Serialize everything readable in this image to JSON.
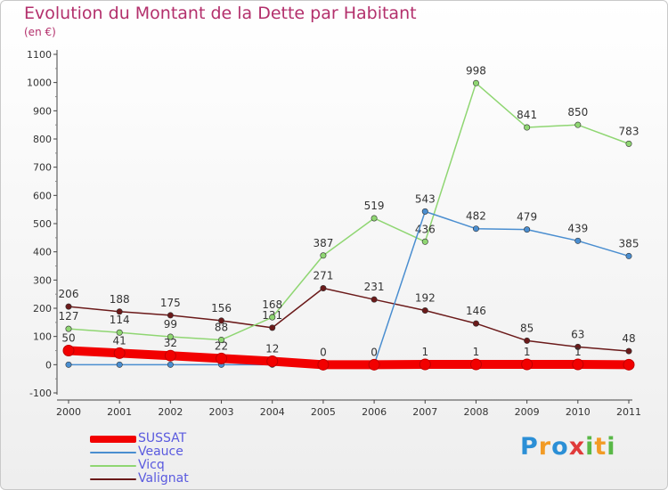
{
  "title": "Evolution du Montant de la Dette par Habitant",
  "subtitle": "(en €)",
  "logo": {
    "text": "Proxiti",
    "colors": [
      "#2b8fd6",
      "#f29b25",
      "#2b8fd6",
      "#e03a3a",
      "#59b847",
      "#f29b25",
      "#59b847"
    ]
  },
  "chart_data": {
    "type": "line",
    "x": [
      "2000",
      "2001",
      "2002",
      "2003",
      "2004",
      "2005",
      "2006",
      "2007",
      "2008",
      "2009",
      "2010",
      "2011"
    ],
    "ylim": [
      -100,
      1100
    ],
    "yticks": [
      "-100",
      "0",
      "100",
      "200",
      "300",
      "400",
      "500",
      "600",
      "700",
      "800",
      "900",
      "1000",
      "1100"
    ],
    "grid": false,
    "legend_position": "bottom-left",
    "series": [
      {
        "name": "Valignat",
        "color": "#6b1a1a",
        "width": 1.5,
        "values": [
          206,
          188,
          175,
          156,
          131,
          271,
          231,
          192,
          146,
          85,
          63,
          48
        ],
        "labels": [
          "206",
          "188",
          "175",
          "156",
          "131",
          "271",
          "231",
          "192",
          "146",
          "85",
          "63",
          "48"
        ]
      },
      {
        "name": "Vicq",
        "color": "#8fd672",
        "width": 1.5,
        "values": [
          127,
          114,
          99,
          88,
          168,
          387,
          519,
          436,
          998,
          841,
          850,
          783
        ],
        "labels": [
          "127",
          "114",
          "99",
          "88",
          "168",
          "387",
          "519",
          "436",
          "998",
          "841",
          "850",
          "783"
        ]
      },
      {
        "name": "Veauce",
        "color": "#4a8ed0",
        "width": 1.5,
        "values": [
          0,
          0,
          0,
          0,
          0,
          0,
          0,
          543,
          482,
          479,
          439,
          385
        ],
        "labels": [
          "",
          "",
          "",
          "",
          "",
          "",
          "",
          "543",
          "482",
          "479",
          "439",
          "385"
        ]
      },
      {
        "name": "SUSSAT",
        "color": "#f20000",
        "width": 10,
        "values": [
          50,
          41,
          32,
          22,
          12,
          0,
          0,
          1,
          1,
          1,
          1,
          0
        ],
        "labels": [
          "50",
          "41",
          "32",
          "22",
          "12",
          "0",
          "0",
          "1",
          "1",
          "1",
          "1",
          ""
        ]
      }
    ],
    "legend": [
      "SUSSAT",
      "Veauce",
      "Vicq",
      "Valignat"
    ]
  }
}
